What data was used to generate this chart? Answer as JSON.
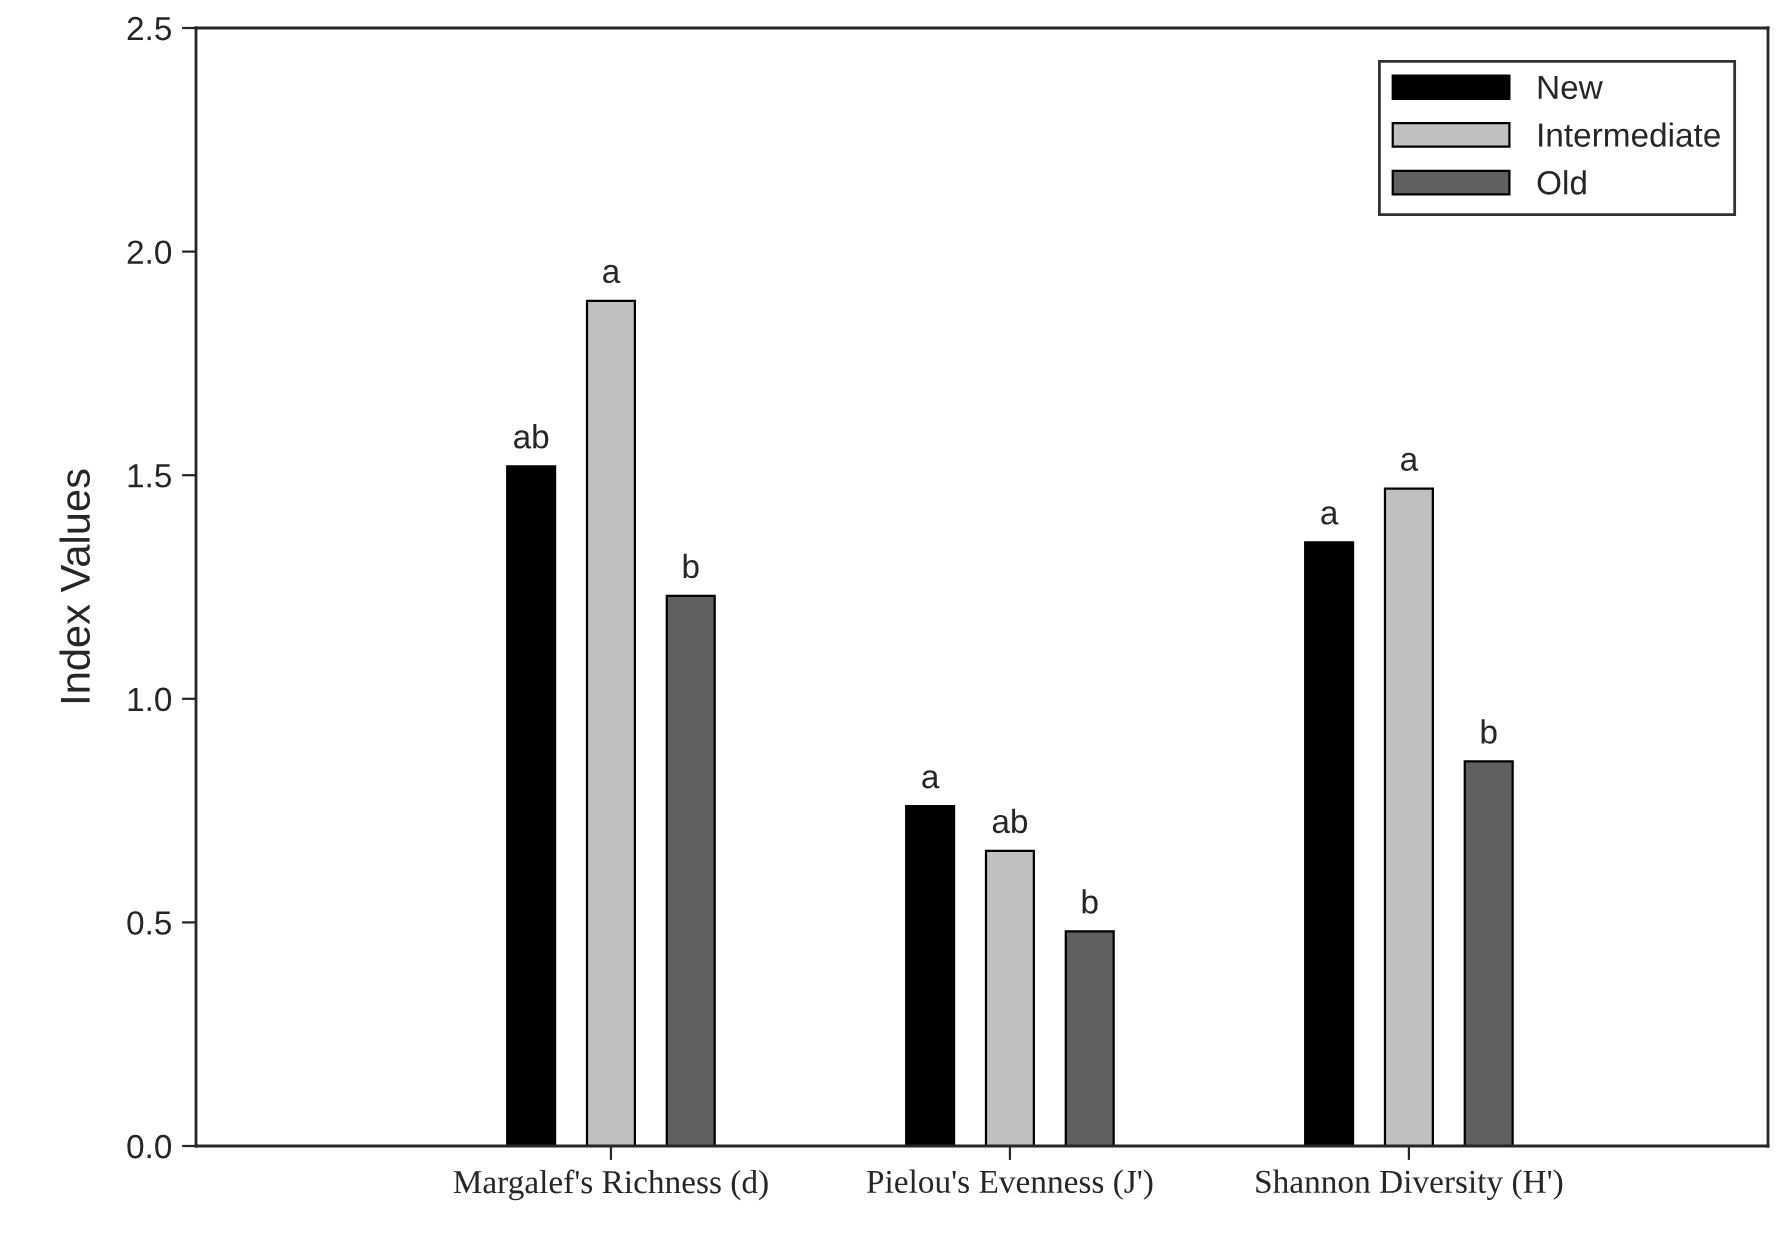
{
  "chart_data": {
    "type": "bar",
    "ylabel": "Index Values",
    "categories": [
      "Margalef's Richness (d)",
      "Pielou's Evenness (J')",
      "Shannon Diversity (H')"
    ],
    "series": [
      {
        "name": "New",
        "color": "#000000",
        "values": [
          1.52,
          0.76,
          1.35
        ],
        "value_labels": [
          "ab",
          "a",
          "a"
        ]
      },
      {
        "name": "Intermediate",
        "color": "#c0c0c0",
        "values": [
          1.89,
          0.66,
          1.47
        ],
        "value_labels": [
          "a",
          "ab",
          "a"
        ]
      },
      {
        "name": "Old",
        "color": "#606060",
        "values": [
          1.23,
          0.48,
          0.86
        ],
        "value_labels": [
          "b",
          "b",
          "b"
        ]
      }
    ],
    "ylim": [
      0,
      2.5
    ],
    "yticks": [
      {
        "value": 0,
        "label": "0.0"
      },
      {
        "value": 0.5,
        "label": "0.5"
      },
      {
        "value": 1,
        "label": "1.0"
      },
      {
        "value": 1.5,
        "label": "1.5"
      },
      {
        "value": 2,
        "label": "2.0"
      },
      {
        "value": 2.5,
        "label": "2.5"
      }
    ],
    "grid": false,
    "legend": "top right"
  }
}
